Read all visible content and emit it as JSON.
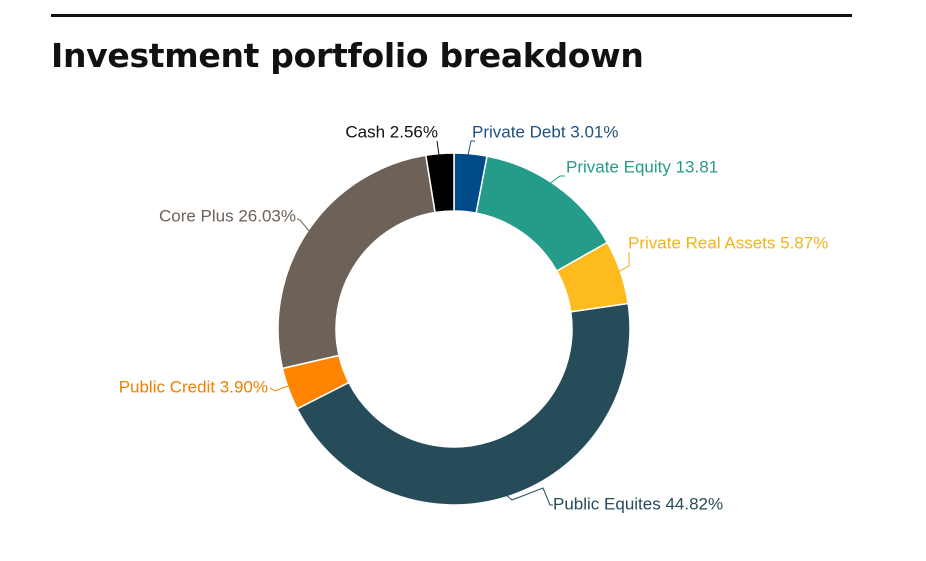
{
  "chart_data": {
    "type": "pie",
    "donut": true,
    "title": "Investment portfolio breakdown",
    "slices": [
      {
        "label": "Private Debt 3.01%",
        "value": 3.01,
        "color": "#004B87",
        "label_color": "#1F5180"
      },
      {
        "label": "Private Equity 13.81",
        "value": 13.81,
        "color": "#259B8A",
        "label_color": "#259B8A"
      },
      {
        "label": "Private Real Assets 5.87%",
        "value": 5.87,
        "color": "#FDBB1E",
        "label_color": "#F2B31A"
      },
      {
        "label": "Public Equites 44.82%",
        "value": 44.82,
        "color": "#264C5A",
        "label_color": "#264C5A"
      },
      {
        "label": "Public Credit 3.90%",
        "value": 3.9,
        "color": "#FF8400",
        "label_color": "#F08000"
      },
      {
        "label": "Core Plus 26.03%",
        "value": 26.03,
        "color": "#6E6158",
        "label_color": "#6E6158"
      },
      {
        "label": "Cash 2.56%",
        "value": 2.56,
        "color": "#000000",
        "label_color": "#111111"
      }
    ]
  }
}
